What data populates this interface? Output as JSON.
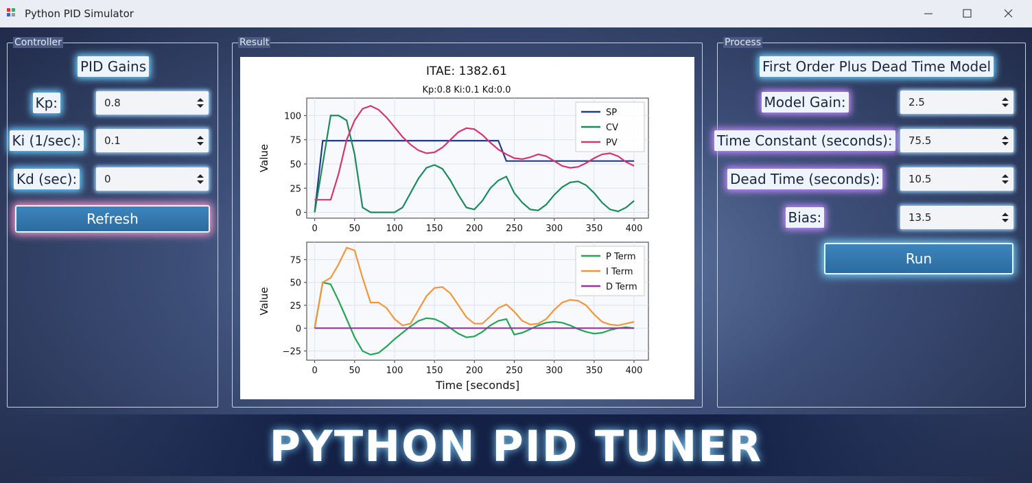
{
  "window": {
    "title": "Python PID Simulator"
  },
  "controller": {
    "title": "Controller",
    "heading": "PID Gains",
    "fields": [
      {
        "label": "Kp:",
        "value": "0.8"
      },
      {
        "label": "Ki (1/sec):",
        "value": "0.1"
      },
      {
        "label": "Kd (sec):",
        "value": "0"
      }
    ],
    "button": "Refresh"
  },
  "result": {
    "title": "Result"
  },
  "process": {
    "title": "Process",
    "heading": "First Order Plus Dead Time Model",
    "fields": [
      {
        "label": "Model Gain:",
        "value": "2.5"
      },
      {
        "label": "Time Constant (seconds):",
        "value": "75.5"
      },
      {
        "label": "Dead Time (seconds):",
        "value": "10.5"
      },
      {
        "label": "Bias:",
        "value": "13.5"
      }
    ],
    "button": "Run"
  },
  "banner": {
    "title": "PYTHON PID TUNER"
  },
  "chart_data": [
    {
      "type": "line",
      "title": "ITAE: 1382.61",
      "subtitle": "Kp:0.8  Ki:0.1  Kd:0.0",
      "ylabel": "Value",
      "x": [
        0,
        10,
        20,
        30,
        40,
        50,
        60,
        70,
        80,
        90,
        100,
        110,
        120,
        130,
        140,
        150,
        160,
        170,
        180,
        190,
        200,
        210,
        220,
        230,
        240,
        250,
        260,
        270,
        280,
        290,
        300,
        310,
        320,
        330,
        340,
        350,
        360,
        370,
        380,
        390,
        400
      ],
      "series": [
        {
          "name": "SP",
          "color": "#1f3c8c",
          "values": [
            0,
            74,
            74,
            74,
            74,
            74,
            74,
            74,
            74,
            74,
            74,
            74,
            74,
            74,
            74,
            74,
            74,
            74,
            74,
            74,
            74,
            74,
            74,
            74,
            53,
            53,
            53,
            53,
            53,
            53,
            53,
            53,
            53,
            53,
            53,
            53,
            53,
            53,
            53,
            53,
            53
          ]
        },
        {
          "name": "CV",
          "color": "#1a8a5a",
          "values": [
            0,
            50,
            100,
            100,
            95,
            60,
            5,
            0,
            0,
            0,
            0,
            5,
            20,
            35,
            46,
            49,
            45,
            33,
            18,
            5,
            3,
            12,
            25,
            33,
            37,
            20,
            10,
            3,
            2,
            8,
            18,
            26,
            31,
            32,
            28,
            20,
            10,
            3,
            1,
            5,
            12
          ]
        },
        {
          "name": "PV",
          "color": "#d6336c",
          "values": [
            13,
            13,
            13,
            40,
            75,
            95,
            107,
            110,
            106,
            98,
            88,
            78,
            70,
            64,
            61,
            62,
            67,
            75,
            83,
            87,
            86,
            80,
            72,
            65,
            60,
            56,
            55,
            57,
            60,
            58,
            53,
            48,
            46,
            47,
            51,
            56,
            60,
            61,
            58,
            52,
            48
          ]
        }
      ],
      "xlim": [
        -10,
        418
      ],
      "xticks": [
        0,
        50,
        100,
        150,
        200,
        250,
        300,
        350,
        400
      ],
      "ylim": [
        -6,
        118
      ],
      "yticks": [
        0,
        25,
        50,
        75,
        100
      ],
      "grid": true,
      "legend": "upper right"
    },
    {
      "type": "line",
      "xlabel": "Time [seconds]",
      "ylabel": "Value",
      "x": [
        0,
        10,
        20,
        30,
        40,
        50,
        60,
        70,
        80,
        90,
        100,
        110,
        120,
        130,
        140,
        150,
        160,
        170,
        180,
        190,
        200,
        210,
        220,
        230,
        240,
        250,
        260,
        270,
        280,
        290,
        300,
        310,
        320,
        330,
        340,
        350,
        360,
        370,
        380,
        390,
        400
      ],
      "series": [
        {
          "name": "P Term",
          "color": "#22a455",
          "values": [
            0,
            50,
            48,
            30,
            10,
            -10,
            -25,
            -29,
            -27,
            -20,
            -12,
            -5,
            2,
            8,
            11,
            10,
            6,
            0,
            -6,
            -10,
            -9,
            -4,
            3,
            8,
            10,
            -7,
            -5,
            -1,
            3,
            6,
            7,
            6,
            3,
            -1,
            -4,
            -6,
            -5,
            -2,
            0,
            1,
            0
          ]
        },
        {
          "name": "I Term",
          "color": "#f0953a",
          "values": [
            0,
            50,
            55,
            70,
            88,
            85,
            55,
            28,
            28,
            22,
            10,
            3,
            5,
            20,
            35,
            44,
            45,
            38,
            25,
            12,
            5,
            5,
            13,
            22,
            26,
            18,
            8,
            4,
            5,
            10,
            20,
            28,
            31,
            30,
            25,
            15,
            7,
            4,
            3,
            5,
            7
          ]
        },
        {
          "name": "D Term",
          "color": "#8e3a8e",
          "values": [
            0,
            0,
            0,
            0,
            0,
            0,
            0,
            0,
            0,
            0,
            0,
            0,
            0,
            0,
            0,
            0,
            0,
            0,
            0,
            0,
            0,
            0,
            0,
            0,
            0,
            0,
            0,
            0,
            0,
            0,
            0,
            0,
            0,
            0,
            0,
            0,
            0,
            0,
            0,
            0,
            0
          ]
        }
      ],
      "xlim": [
        -10,
        418
      ],
      "xticks": [
        0,
        50,
        100,
        150,
        200,
        250,
        300,
        350,
        400
      ],
      "ylim": [
        -35,
        94
      ],
      "yticks": [
        {
          "value": -25,
          "label": "−25"
        },
        0,
        25,
        50,
        75
      ],
      "grid": true,
      "legend": "upper right"
    }
  ]
}
